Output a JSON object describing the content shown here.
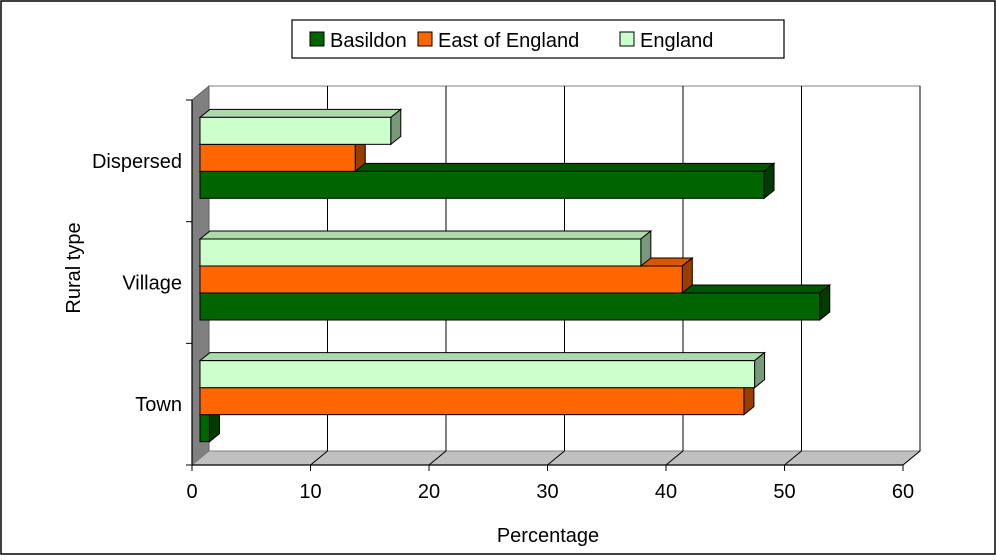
{
  "chart_data": {
    "type": "bar",
    "orientation": "horizontal",
    "style": "3d",
    "categories": [
      "Town",
      "Village",
      "Dispersed"
    ],
    "series": [
      {
        "name": "Basildon",
        "values": [
          0.8,
          52.3,
          47.6
        ]
      },
      {
        "name": "East of England",
        "values": [
          45.9,
          40.7,
          13.1
        ]
      },
      {
        "name": "England",
        "values": [
          46.8,
          37.2,
          16.1
        ]
      }
    ],
    "colors": {
      "Basildon": "#006400",
      "East of England": "#ff6600",
      "England": "#ccffcc"
    },
    "xlabel": "Percentage",
    "ylabel": "Rural type",
    "xlim": [
      0,
      60
    ],
    "xticks": [
      0,
      10,
      20,
      30,
      40,
      50,
      60
    ],
    "grid": "vertical",
    "legend_position": "top"
  }
}
